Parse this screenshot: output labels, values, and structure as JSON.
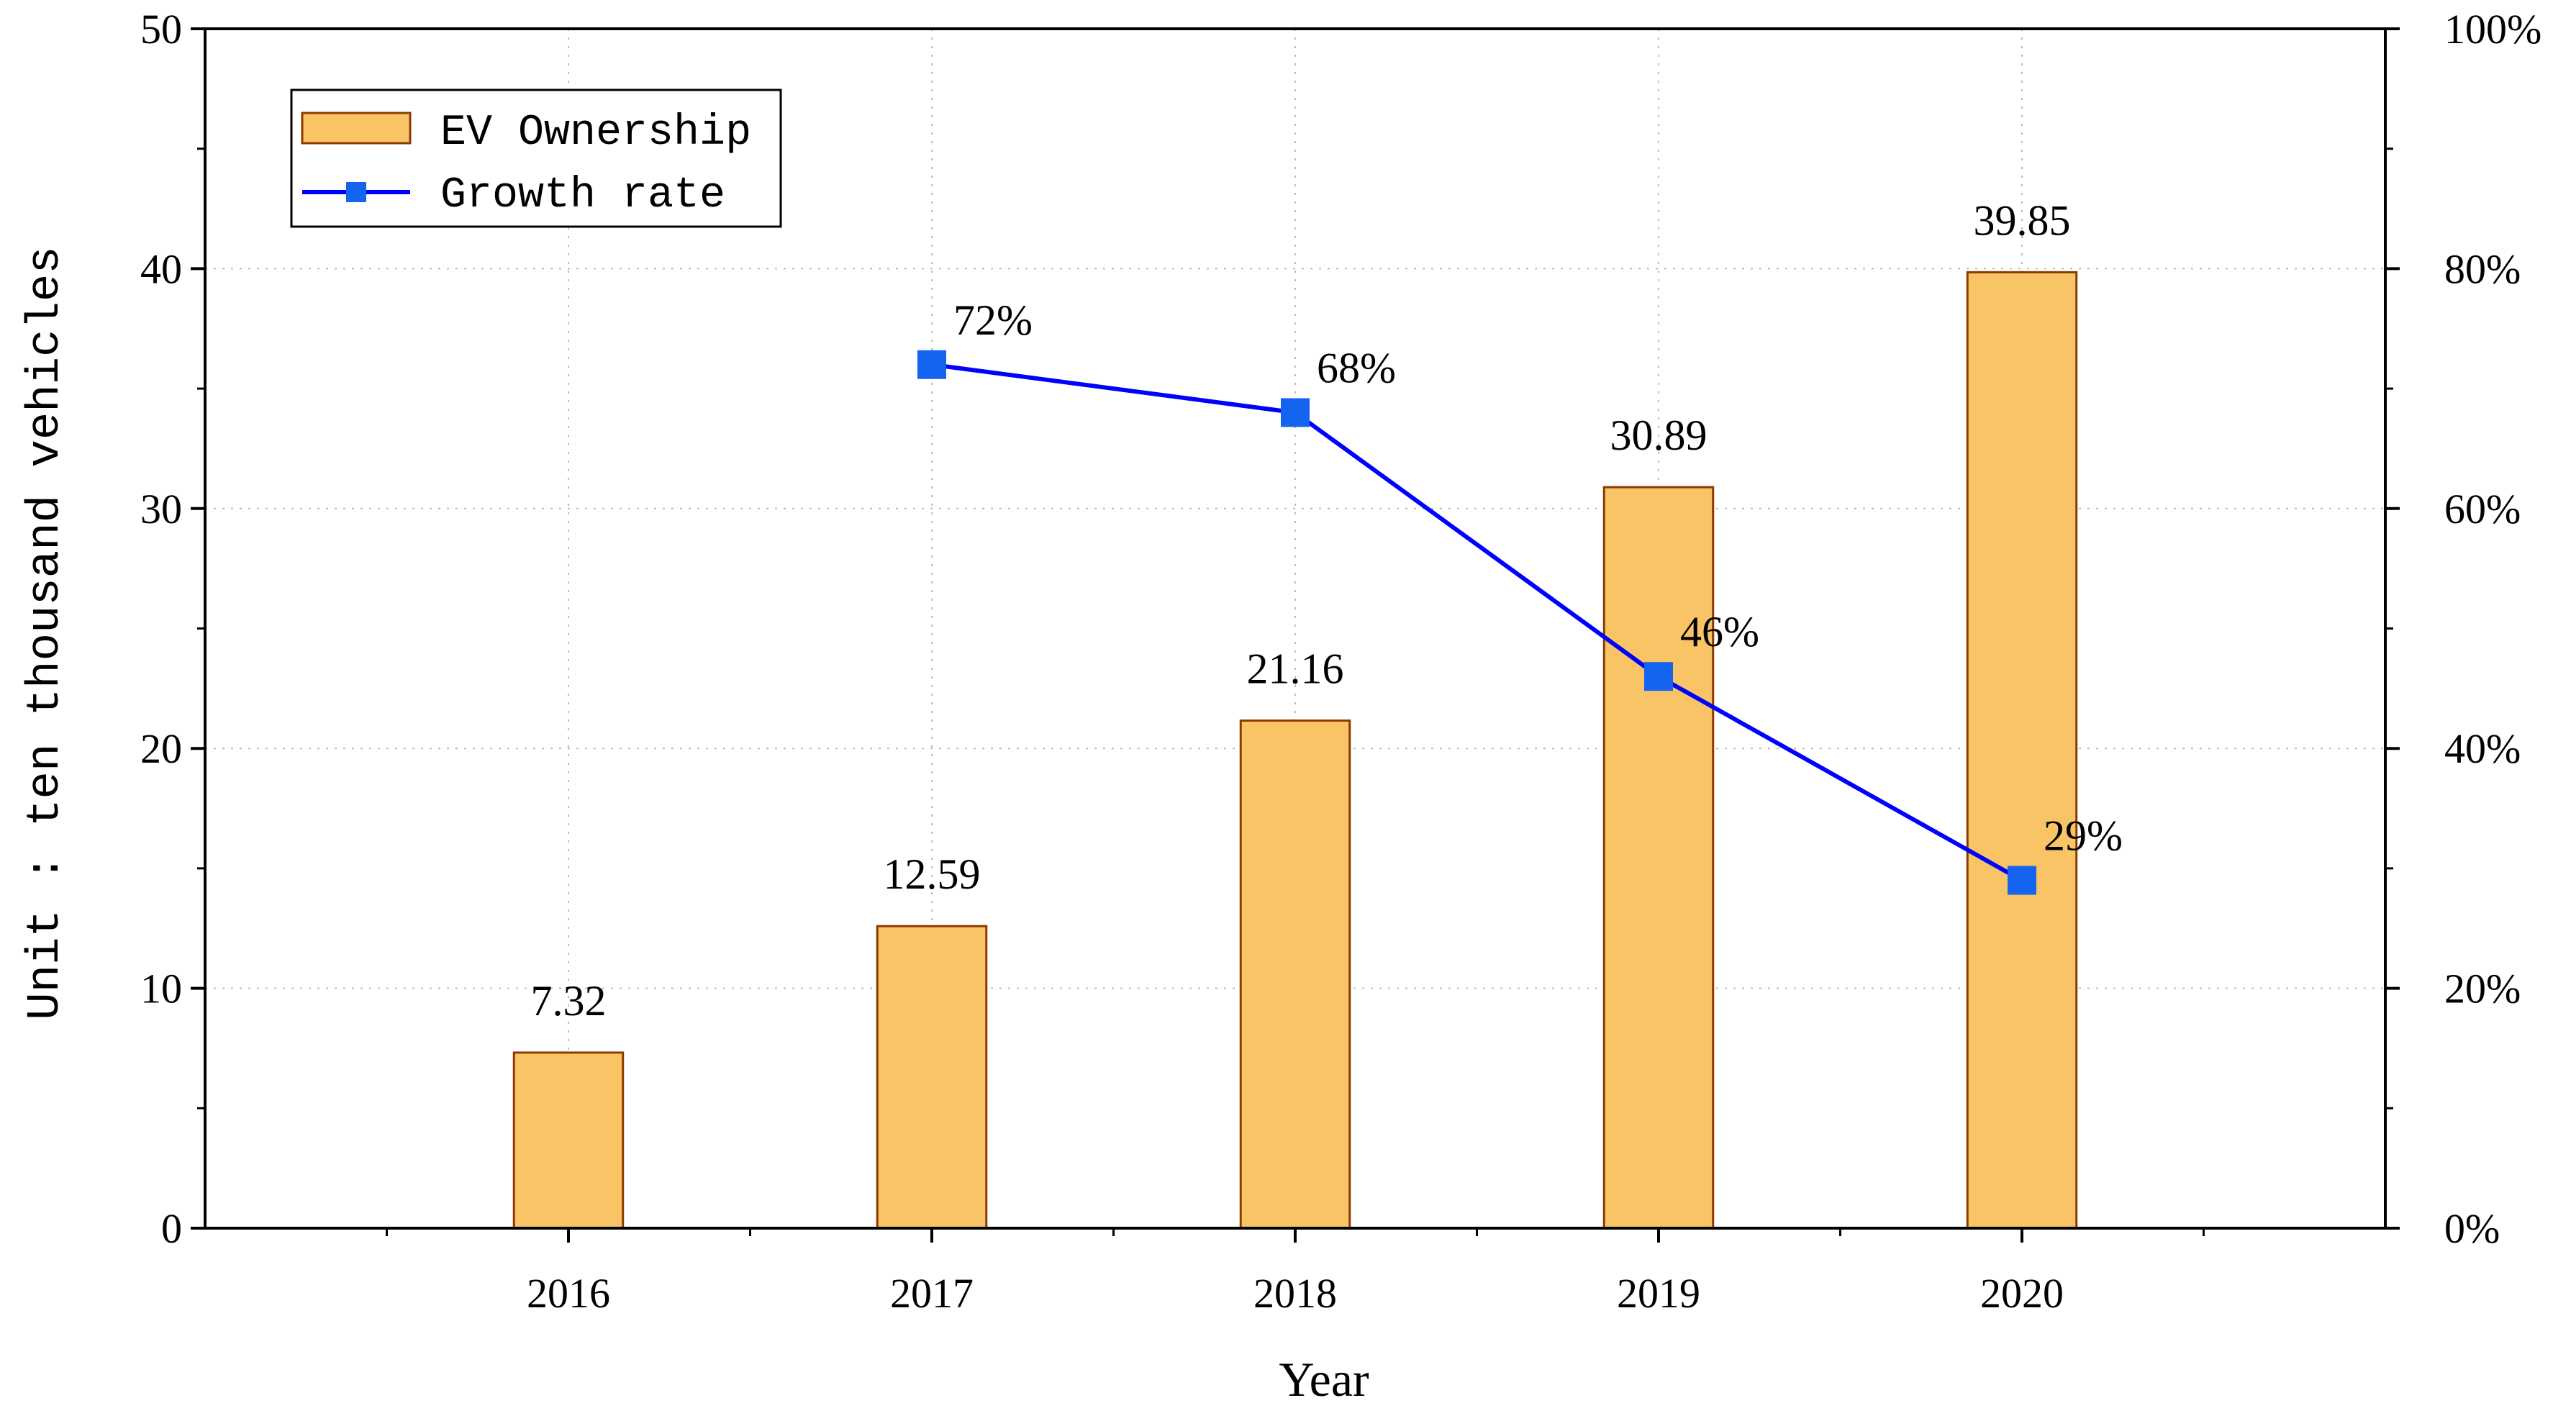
{
  "chart_data": {
    "type": "bar",
    "title": "",
    "categories": [
      "2016",
      "2017",
      "2018",
      "2019",
      "2020"
    ],
    "series": [
      {
        "name": "EV Ownership",
        "kind": "bar",
        "axis": "left",
        "values": [
          7.32,
          12.59,
          21.16,
          30.89,
          39.85
        ],
        "labels": [
          "7.32",
          "12.59",
          "21.16",
          "30.89",
          "39.85"
        ]
      },
      {
        "name": "Growth rate",
        "kind": "line",
        "axis": "right",
        "values": [
          null,
          72,
          68,
          46,
          29
        ],
        "labels": [
          "",
          "72%",
          "68%",
          "46%",
          "29%"
        ]
      }
    ],
    "xlabel": "Year",
    "ylabel": "Unit : ten thousand vehicles",
    "ylim": [
      0,
      50
    ],
    "yticks": [
      "0",
      "10",
      "20",
      "30",
      "40",
      "50"
    ],
    "y2lim": [
      0,
      100
    ],
    "y2ticks": [
      "0%",
      "20%",
      "40%",
      "60%",
      "80%",
      "100%"
    ],
    "grid": true,
    "legend": "top-left",
    "colors": {
      "bar_fill": "#F8C465",
      "bar_stroke": "#8B3A00",
      "line": "#0000FF",
      "marker": "#1464F0",
      "grid": "#BBBBBB"
    }
  }
}
